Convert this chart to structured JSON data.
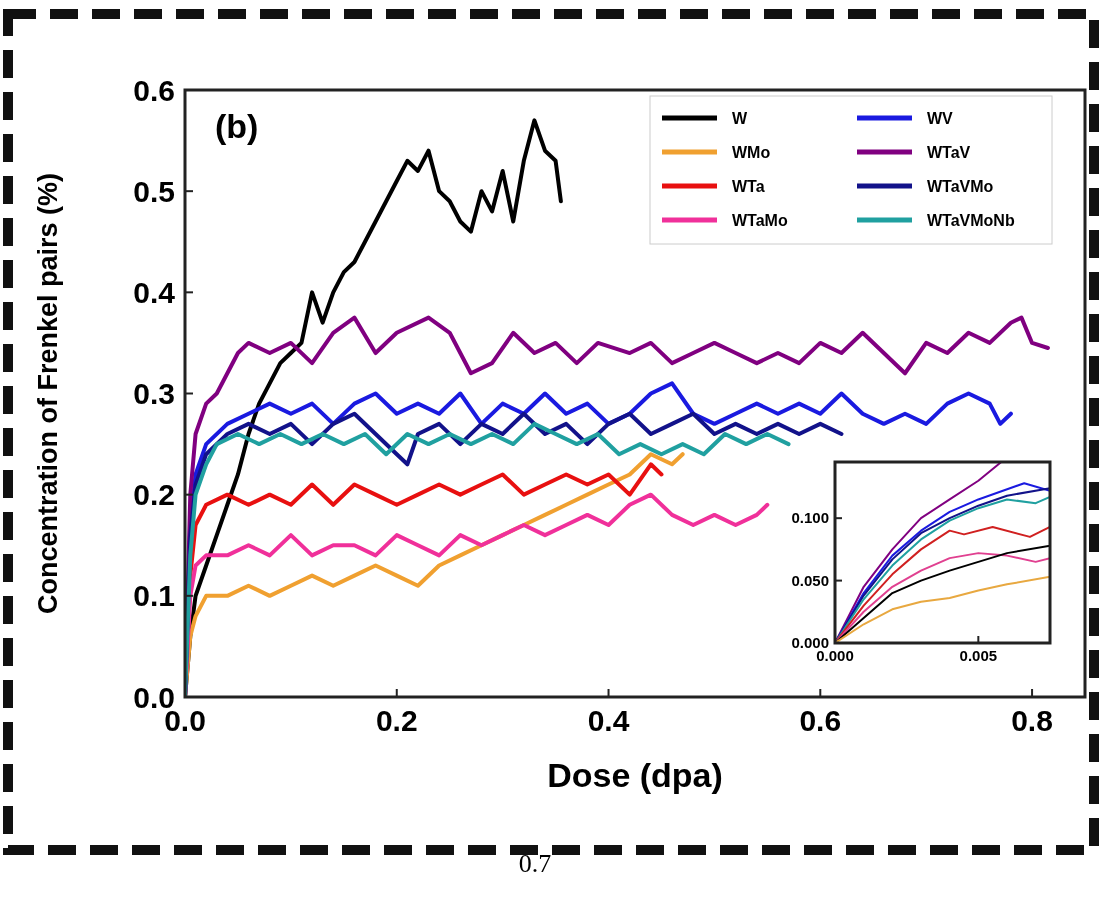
{
  "chart_data": [
    {
      "type": "line",
      "xlabel": "Dose (dpa)",
      "ylabel": "Concentration of Frenkel pairs (%)",
      "annotations": [
        "(b)",
        "0.7"
      ],
      "xlim": [
        0,
        0.85
      ],
      "ylim": [
        0,
        0.6
      ],
      "xticks": [
        {
          "value": 0,
          "label": "0.0"
        },
        {
          "value": 0.2,
          "label": "0.2"
        },
        {
          "value": 0.4,
          "label": "0.4"
        },
        {
          "value": 0.6,
          "label": "0.6"
        },
        {
          "value": 0.8,
          "label": "0.8"
        }
      ],
      "yticks": [
        {
          "value": 0,
          "label": "0.0"
        },
        {
          "value": 0.1,
          "label": "0.1"
        },
        {
          "value": 0.2,
          "label": "0.2"
        },
        {
          "value": 0.3,
          "label": "0.3"
        },
        {
          "value": 0.4,
          "label": "0.4"
        },
        {
          "value": 0.5,
          "label": "0.5"
        },
        {
          "value": 0.6,
          "label": "0.6"
        }
      ],
      "grid": false,
      "legend": "top right",
      "line_style": "solid",
      "series": [
        {
          "name": "W",
          "color": "#000000",
          "x": [
            0,
            0.005,
            0.01,
            0.02,
            0.03,
            0.04,
            0.05,
            0.06,
            0.07,
            0.08,
            0.09,
            0.1,
            0.11,
            0.12,
            0.13,
            0.14,
            0.15,
            0.16,
            0.17,
            0.18,
            0.19,
            0.2,
            0.21,
            0.22,
            0.23,
            0.24,
            0.25,
            0.26,
            0.27,
            0.28,
            0.29,
            0.3,
            0.31,
            0.32,
            0.33,
            0.34,
            0.35,
            0.355
          ],
          "values": [
            0,
            0.06,
            0.1,
            0.13,
            0.16,
            0.19,
            0.22,
            0.26,
            0.29,
            0.31,
            0.33,
            0.34,
            0.35,
            0.4,
            0.37,
            0.4,
            0.42,
            0.43,
            0.45,
            0.47,
            0.49,
            0.51,
            0.53,
            0.52,
            0.54,
            0.5,
            0.49,
            0.47,
            0.46,
            0.5,
            0.48,
            0.52,
            0.47,
            0.53,
            0.57,
            0.54,
            0.53,
            0.49
          ]
        },
        {
          "name": "WMo",
          "color": "#f0a030",
          "x": [
            0,
            0.005,
            0.01,
            0.02,
            0.04,
            0.06,
            0.08,
            0.1,
            0.12,
            0.14,
            0.16,
            0.18,
            0.2,
            0.22,
            0.24,
            0.26,
            0.28,
            0.3,
            0.32,
            0.34,
            0.36,
            0.38,
            0.4,
            0.42,
            0.44,
            0.46,
            0.47
          ],
          "values": [
            0,
            0.06,
            0.08,
            0.1,
            0.1,
            0.11,
            0.1,
            0.11,
            0.12,
            0.11,
            0.12,
            0.13,
            0.12,
            0.11,
            0.13,
            0.14,
            0.15,
            0.16,
            0.17,
            0.18,
            0.19,
            0.2,
            0.21,
            0.22,
            0.24,
            0.23,
            0.24
          ]
        },
        {
          "name": "WTa",
          "color": "#e81010",
          "x": [
            0,
            0.005,
            0.01,
            0.02,
            0.04,
            0.06,
            0.08,
            0.1,
            0.12,
            0.14,
            0.16,
            0.18,
            0.2,
            0.22,
            0.24,
            0.26,
            0.28,
            0.3,
            0.32,
            0.34,
            0.36,
            0.38,
            0.4,
            0.42,
            0.44,
            0.45
          ],
          "values": [
            0,
            0.12,
            0.17,
            0.19,
            0.2,
            0.19,
            0.2,
            0.19,
            0.21,
            0.19,
            0.21,
            0.2,
            0.19,
            0.2,
            0.21,
            0.2,
            0.21,
            0.22,
            0.2,
            0.21,
            0.22,
            0.21,
            0.22,
            0.2,
            0.23,
            0.22
          ]
        },
        {
          "name": "WTaMo",
          "color": "#f0309a",
          "x": [
            0,
            0.005,
            0.01,
            0.02,
            0.04,
            0.06,
            0.08,
            0.1,
            0.12,
            0.14,
            0.16,
            0.18,
            0.2,
            0.22,
            0.24,
            0.26,
            0.28,
            0.3,
            0.32,
            0.34,
            0.36,
            0.38,
            0.4,
            0.42,
            0.44,
            0.46,
            0.48,
            0.5,
            0.52,
            0.54,
            0.55
          ],
          "values": [
            0,
            0.1,
            0.13,
            0.14,
            0.14,
            0.15,
            0.14,
            0.16,
            0.14,
            0.15,
            0.15,
            0.14,
            0.16,
            0.15,
            0.14,
            0.16,
            0.15,
            0.16,
            0.17,
            0.16,
            0.17,
            0.18,
            0.17,
            0.19,
            0.2,
            0.18,
            0.17,
            0.18,
            0.17,
            0.18,
            0.19
          ]
        },
        {
          "name": "WV",
          "color": "#1a1ae0",
          "x": [
            0,
            0.005,
            0.01,
            0.02,
            0.04,
            0.06,
            0.08,
            0.1,
            0.12,
            0.14,
            0.16,
            0.18,
            0.2,
            0.22,
            0.24,
            0.26,
            0.28,
            0.3,
            0.32,
            0.34,
            0.36,
            0.38,
            0.4,
            0.42,
            0.44,
            0.46,
            0.48,
            0.5,
            0.52,
            0.54,
            0.56,
            0.58,
            0.6,
            0.62,
            0.64,
            0.66,
            0.68,
            0.7,
            0.72,
            0.74,
            0.76,
            0.77,
            0.78
          ],
          "values": [
            0,
            0.17,
            0.22,
            0.25,
            0.27,
            0.28,
            0.29,
            0.28,
            0.29,
            0.27,
            0.29,
            0.3,
            0.28,
            0.29,
            0.28,
            0.3,
            0.27,
            0.29,
            0.28,
            0.3,
            0.28,
            0.29,
            0.27,
            0.28,
            0.3,
            0.31,
            0.28,
            0.27,
            0.28,
            0.29,
            0.28,
            0.29,
            0.28,
            0.3,
            0.28,
            0.27,
            0.28,
            0.27,
            0.29,
            0.3,
            0.29,
            0.27,
            0.28
          ]
        },
        {
          "name": "WTaV",
          "color": "#800080",
          "x": [
            0,
            0.005,
            0.01,
            0.02,
            0.03,
            0.04,
            0.05,
            0.06,
            0.08,
            0.1,
            0.12,
            0.14,
            0.16,
            0.18,
            0.2,
            0.23,
            0.25,
            0.27,
            0.29,
            0.31,
            0.33,
            0.35,
            0.37,
            0.39,
            0.42,
            0.44,
            0.46,
            0.48,
            0.5,
            0.52,
            0.54,
            0.56,
            0.58,
            0.6,
            0.62,
            0.64,
            0.66,
            0.68,
            0.7,
            0.72,
            0.74,
            0.76,
            0.78,
            0.79,
            0.8,
            0.815
          ],
          "values": [
            0,
            0.2,
            0.26,
            0.29,
            0.3,
            0.32,
            0.34,
            0.35,
            0.34,
            0.35,
            0.33,
            0.36,
            0.375,
            0.34,
            0.36,
            0.375,
            0.36,
            0.32,
            0.33,
            0.36,
            0.34,
            0.35,
            0.33,
            0.35,
            0.34,
            0.35,
            0.33,
            0.34,
            0.35,
            0.34,
            0.33,
            0.34,
            0.33,
            0.35,
            0.34,
            0.36,
            0.34,
            0.32,
            0.35,
            0.34,
            0.36,
            0.35,
            0.37,
            0.375,
            0.35,
            0.345
          ]
        },
        {
          "name": "WTaVMo",
          "color": "#12128a",
          "x": [
            0,
            0.005,
            0.01,
            0.02,
            0.04,
            0.06,
            0.08,
            0.1,
            0.12,
            0.14,
            0.16,
            0.18,
            0.2,
            0.21,
            0.22,
            0.24,
            0.26,
            0.28,
            0.3,
            0.32,
            0.34,
            0.36,
            0.38,
            0.4,
            0.42,
            0.44,
            0.46,
            0.48,
            0.5,
            0.52,
            0.54,
            0.56,
            0.58,
            0.6,
            0.62
          ],
          "values": [
            0,
            0.16,
            0.21,
            0.24,
            0.26,
            0.27,
            0.26,
            0.27,
            0.25,
            0.27,
            0.28,
            0.26,
            0.24,
            0.23,
            0.26,
            0.27,
            0.25,
            0.27,
            0.26,
            0.28,
            0.26,
            0.27,
            0.25,
            0.27,
            0.28,
            0.26,
            0.27,
            0.28,
            0.26,
            0.27,
            0.26,
            0.27,
            0.26,
            0.27,
            0.26
          ]
        },
        {
          "name": "WTaVMoNb",
          "color": "#20a0a0",
          "x": [
            0,
            0.005,
            0.01,
            0.02,
            0.03,
            0.05,
            0.07,
            0.09,
            0.11,
            0.13,
            0.15,
            0.17,
            0.19,
            0.21,
            0.23,
            0.25,
            0.27,
            0.29,
            0.31,
            0.33,
            0.35,
            0.37,
            0.39,
            0.41,
            0.43,
            0.45,
            0.47,
            0.49,
            0.51,
            0.53,
            0.55,
            0.57
          ],
          "values": [
            0,
            0.14,
            0.2,
            0.23,
            0.25,
            0.26,
            0.25,
            0.26,
            0.25,
            0.26,
            0.25,
            0.26,
            0.24,
            0.26,
            0.25,
            0.26,
            0.25,
            0.26,
            0.25,
            0.27,
            0.26,
            0.25,
            0.26,
            0.24,
            0.25,
            0.24,
            0.25,
            0.24,
            0.26,
            0.25,
            0.26,
            0.25
          ]
        }
      ]
    },
    {
      "type": "line",
      "xlim": [
        0,
        0.0075
      ],
      "ylim": [
        0,
        0.145
      ],
      "grid": false,
      "line_style": "solid",
      "xticks": [
        {
          "value": 0,
          "label": "0.000"
        },
        {
          "value": 0.005,
          "label": "0.005"
        }
      ],
      "yticks": [
        {
          "value": 0,
          "label": "0.000"
        },
        {
          "value": 0.05,
          "label": "0.050"
        },
        {
          "value": 0.1,
          "label": "0.100"
        }
      ],
      "series": [
        {
          "color": "#800080",
          "x": [
            0,
            0.001,
            0.002,
            0.003,
            0.004,
            0.005,
            0.0058
          ],
          "values": [
            0,
            0.045,
            0.075,
            0.1,
            0.115,
            0.13,
            0.145
          ]
        },
        {
          "color": "#1a1ae0",
          "x": [
            0,
            0.001,
            0.002,
            0.003,
            0.004,
            0.005,
            0.0066,
            0.0075
          ],
          "values": [
            0,
            0.04,
            0.07,
            0.09,
            0.105,
            0.115,
            0.128,
            0.122
          ]
        },
        {
          "color": "#12128a",
          "x": [
            0,
            0.001,
            0.002,
            0.003,
            0.004,
            0.005,
            0.006,
            0.0075
          ],
          "values": [
            0,
            0.038,
            0.067,
            0.088,
            0.1,
            0.11,
            0.118,
            0.124
          ]
        },
        {
          "color": "#20a0a0",
          "x": [
            0,
            0.001,
            0.002,
            0.003,
            0.004,
            0.005,
            0.006,
            0.007,
            0.0075
          ],
          "values": [
            0,
            0.035,
            0.062,
            0.083,
            0.098,
            0.108,
            0.115,
            0.112,
            0.117
          ]
        },
        {
          "color": "#d02020",
          "x": [
            0,
            0.001,
            0.002,
            0.003,
            0.004,
            0.0045,
            0.0055,
            0.0068,
            0.0075
          ],
          "values": [
            0,
            0.03,
            0.055,
            0.075,
            0.09,
            0.087,
            0.093,
            0.085,
            0.093
          ]
        },
        {
          "color": "#e04090",
          "x": [
            0,
            0.001,
            0.002,
            0.003,
            0.004,
            0.005,
            0.006,
            0.007,
            0.0075
          ],
          "values": [
            0,
            0.025,
            0.045,
            0.058,
            0.068,
            0.072,
            0.07,
            0.065,
            0.068
          ]
        },
        {
          "color": "#000000",
          "x": [
            0,
            0.001,
            0.002,
            0.003,
            0.004,
            0.005,
            0.006,
            0.0075
          ],
          "values": [
            0,
            0.02,
            0.04,
            0.05,
            0.058,
            0.065,
            0.072,
            0.078
          ]
        },
        {
          "color": "#e8a840",
          "x": [
            0,
            0.001,
            0.002,
            0.003,
            0.004,
            0.005,
            0.006,
            0.0075
          ],
          "values": [
            0,
            0.015,
            0.027,
            0.033,
            0.036,
            0.042,
            0.047,
            0.053
          ]
        }
      ]
    }
  ]
}
